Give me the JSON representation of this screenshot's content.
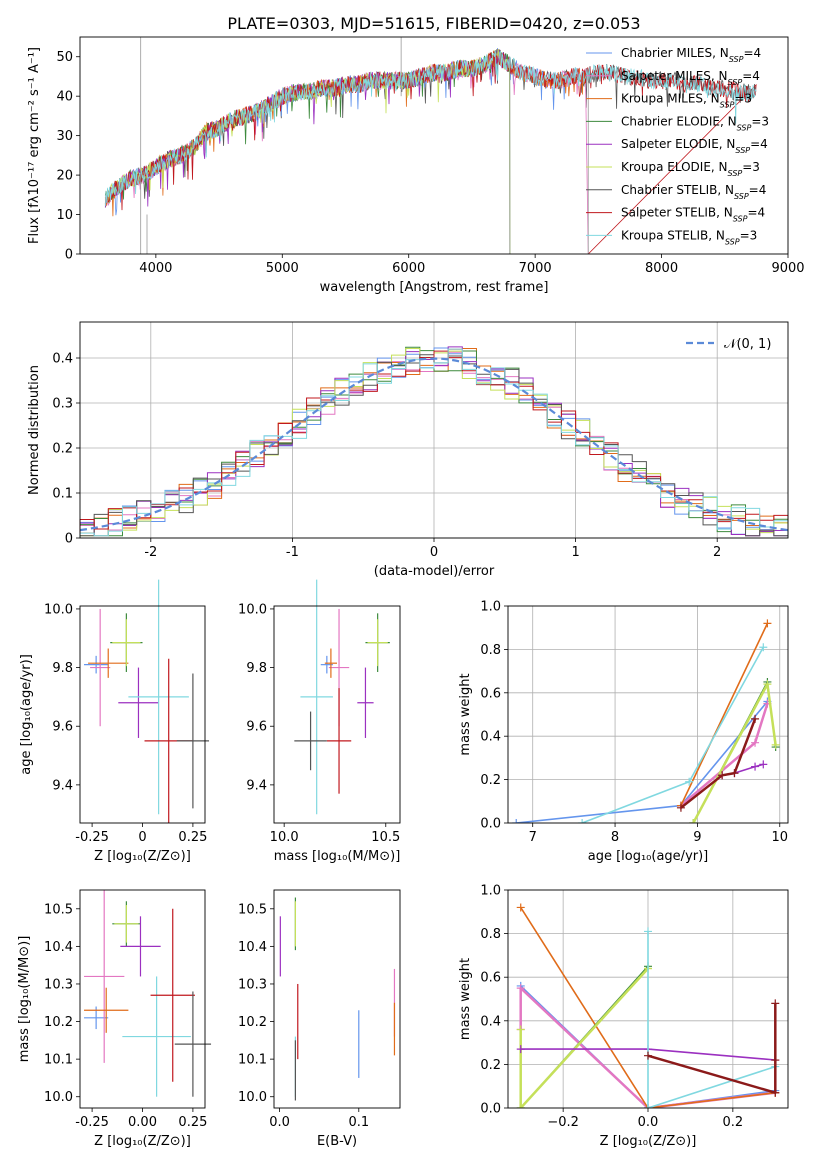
{
  "figure_title": "PLATE=0303, MJD=51615, FIBERID=0420, z=0.053",
  "chart_data": [
    {
      "id": "spectrum",
      "type": "line",
      "xlabel": "wavelength [Angstrom, rest frame]",
      "ylabel": "Flux [fλ10⁻¹⁷ erg cm⁻² s⁻¹ A⁻¹]",
      "xlim": [
        3400,
        9000
      ],
      "ylim": [
        0,
        55
      ],
      "xticks": [
        4000,
        5000,
        6000,
        7000,
        8000,
        9000
      ],
      "yticks": [
        0,
        10,
        20,
        30,
        40,
        50
      ],
      "grid": false,
      "legend_position": "top-right",
      "continuum_x": [
        3600,
        3700,
        3800,
        3900,
        4000,
        4100,
        4200,
        4300,
        4400,
        4500,
        4600,
        4700,
        4800,
        4900,
        5000,
        5100,
        5200,
        5300,
        5400,
        5500,
        5600,
        5700,
        5800,
        5900,
        6000,
        6100,
        6200,
        6300,
        6400,
        6500,
        6600,
        6700,
        6800,
        6900,
        7000,
        7100,
        7200,
        7300,
        7400,
        7500,
        7600,
        7700,
        7800,
        7900,
        8000,
        8100,
        8200,
        8300,
        8400,
        8500,
        8600,
        8700,
        8750
      ],
      "continuum_y": [
        14,
        17,
        19,
        20,
        22,
        24,
        25,
        27,
        31,
        32,
        34,
        35,
        36,
        38,
        40,
        41,
        41,
        42,
        42,
        43,
        43,
        44,
        44,
        44,
        44,
        45,
        46,
        46,
        47,
        47,
        48,
        50,
        48,
        46,
        45,
        44,
        44,
        45,
        45,
        46,
        46,
        45,
        45,
        44,
        44,
        44,
        43,
        43,
        42,
        42,
        41,
        41,
        41
      ],
      "series": [
        {
          "name": "Chabrier MILES, N_SSP=4",
          "label_main": "Chabrier MILES, N",
          "label_sub": "SSP",
          "label_tail": "=4",
          "color": "#6495ed",
          "xmax": 7400
        },
        {
          "name": "Salpeter MILES, N_SSP=4",
          "label_main": "Salpeter MILES, N",
          "label_sub": "SSP",
          "label_tail": "=4",
          "color": "#e377c2",
          "xmax": 7400
        },
        {
          "name": "Kroupa MILES, N_SSP=3",
          "label_main": "Kroupa MILES, N",
          "label_sub": "SSP",
          "label_tail": "=3",
          "color": "#e06c1a",
          "xmax": 7400
        },
        {
          "name": "Chabrier ELODIE, N_SSP=3",
          "label_main": "Chabrier ELODIE, N",
          "label_sub": "SSP",
          "label_tail": "=3",
          "color": "#3d8a3d",
          "xmax": 6800
        },
        {
          "name": "Salpeter ELODIE, N_SSP=4",
          "label_main": "Salpeter ELODIE, N",
          "label_sub": "SSP",
          "label_tail": "=4",
          "color": "#9b30c0",
          "xmax": 6800
        },
        {
          "name": "Kroupa ELODIE, N_SSP=3",
          "label_main": "Kroupa ELODIE, N",
          "label_sub": "SSP",
          "label_tail": "=3",
          "color": "#c5e05a",
          "xmax": 6800
        },
        {
          "name": "Chabrier STELIB, N_SSP=4",
          "label_main": "Chabrier STELIB, N",
          "label_sub": "SSP",
          "label_tail": "=4",
          "color": "#555555",
          "xmax": 8750
        },
        {
          "name": "Salpeter STELIB, N_SSP=4",
          "label_main": "Salpeter STELIB, N",
          "label_sub": "SSP",
          "label_tail": "=4",
          "color": "#c0181e",
          "xmax": 8750
        },
        {
          "name": "Kroupa STELIB, N_SSP=3",
          "label_main": "Kroupa STELIB, N",
          "label_sub": "SSP",
          "label_tail": "=3",
          "color": "#80d8e0",
          "xmax": 8750
        }
      ]
    },
    {
      "id": "residuals",
      "type": "histogram",
      "xlabel": "(data-model)/error",
      "ylabel": "Normed distribution",
      "xlim": [
        -2.5,
        2.5
      ],
      "ylim": [
        0,
        0.48
      ],
      "xticks": [
        -2,
        -1,
        0,
        1,
        2
      ],
      "yticks": [
        0.0,
        0.1,
        0.2,
        0.3,
        0.4
      ],
      "grid": true,
      "legend_position": "top-right",
      "legend_label": "𝒩(0, 1)",
      "reference_curve": {
        "name": "N(0,1)",
        "mean": 0,
        "sigma": 1,
        "color": "#5b8ad8"
      },
      "bins": [
        -2.5,
        -2.4,
        -2.3,
        -2.2,
        -2.1,
        -2.0,
        -1.9,
        -1.8,
        -1.7,
        -1.6,
        -1.5,
        -1.4,
        -1.3,
        -1.2,
        -1.1,
        -1.0,
        -0.9,
        -0.8,
        -0.7,
        -0.6,
        -0.5,
        -0.4,
        -0.3,
        -0.2,
        -0.1,
        0.0,
        0.1,
        0.2,
        0.3,
        0.4,
        0.5,
        0.6,
        0.7,
        0.8,
        0.9,
        1.0,
        1.1,
        1.2,
        1.3,
        1.4,
        1.5,
        1.6,
        1.7,
        1.8,
        1.9,
        2.0,
        2.1,
        2.2,
        2.3,
        2.4
      ],
      "hist_colors": [
        "#6495ed",
        "#e377c2",
        "#e06c1a",
        "#3d8a3d",
        "#9b30c0",
        "#c5e05a",
        "#555555",
        "#c0181e",
        "#80d8e0"
      ]
    },
    {
      "id": "age-vs-Z",
      "type": "scatter",
      "xlabel": "Z [log₁₀(Z/Z⊙)]",
      "ylabel": "age  [log₁₀(age/yr)]",
      "xlim": [
        -0.31,
        0.31
      ],
      "ylim": [
        9.27,
        10.01
      ],
      "xticks": [
        -0.25,
        0.0,
        0.25
      ],
      "ytick_labels": [
        "-0.25",
        "0.00",
        "0.25"
      ],
      "yticks": [
        9.4,
        9.6,
        9.8,
        10.0
      ],
      "ytick_text": [
        "9.4",
        "9.6",
        "9.8",
        "10.0"
      ],
      "grid": false,
      "points": [
        {
          "color": "#6495ed",
          "x": -0.23,
          "y": 9.81,
          "xerr": 0.06,
          "yerr": 0.03
        },
        {
          "color": "#e377c2",
          "x": -0.21,
          "y": 9.8,
          "xerr": 0.05,
          "yerr": 0.2
        },
        {
          "color": "#e06c1a",
          "x": -0.17,
          "y": 9.815,
          "xerr": 0.1,
          "yerr": 0.05
        },
        {
          "color": "#3d8a3d",
          "x": -0.08,
          "y": 9.885,
          "xerr": 0.08,
          "yerr": 0.1
        },
        {
          "color": "#c5e05a",
          "x": -0.08,
          "y": 9.885,
          "xerr": 0.07,
          "yerr": 0.08
        },
        {
          "color": "#9b30c0",
          "x": -0.02,
          "y": 9.68,
          "xerr": 0.1,
          "yerr": 0.12
        },
        {
          "color": "#80d8e0",
          "x": 0.08,
          "y": 9.7,
          "xerr": 0.15,
          "yerr": 0.4
        },
        {
          "color": "#c0181e",
          "x": 0.13,
          "y": 9.55,
          "xerr": 0.12,
          "yerr": 0.28
        },
        {
          "color": "#555555",
          "x": 0.25,
          "y": 9.55,
          "xerr": 0.08,
          "yerr": 0.23
        }
      ]
    },
    {
      "id": "age-vs-mass",
      "type": "scatter",
      "xlabel": "mass [log₁₀(M/M⊙)]",
      "xlim": [
        9.95,
        10.57
      ],
      "ylim": [
        9.27,
        10.01
      ],
      "xticks": [
        10.0,
        10.5
      ],
      "xtick_text": [
        "10.0",
        "10.5"
      ],
      "yticks": [
        9.4,
        9.6,
        9.8,
        10.0
      ],
      "ytick_text": [
        "9.4",
        "9.6",
        "9.8",
        "10.0"
      ],
      "grid": false,
      "points": [
        {
          "color": "#6495ed",
          "x": 10.21,
          "y": 9.81,
          "xerr": 0.03,
          "yerr": 0.03
        },
        {
          "color": "#e377c2",
          "x": 10.27,
          "y": 9.8,
          "xerr": 0.05,
          "yerr": 0.2
        },
        {
          "color": "#e06c1a",
          "x": 10.23,
          "y": 9.815,
          "xerr": 0.03,
          "yerr": 0.05
        },
        {
          "color": "#3d8a3d",
          "x": 10.46,
          "y": 9.885,
          "xerr": 0.06,
          "yerr": 0.1
        },
        {
          "color": "#c5e05a",
          "x": 10.46,
          "y": 9.885,
          "xerr": 0.05,
          "yerr": 0.08
        },
        {
          "color": "#9b30c0",
          "x": 10.4,
          "y": 9.68,
          "xerr": 0.04,
          "yerr": 0.12
        },
        {
          "color": "#80d8e0",
          "x": 10.16,
          "y": 9.7,
          "xerr": 0.08,
          "yerr": 0.4
        },
        {
          "color": "#c0181e",
          "x": 10.27,
          "y": 9.55,
          "xerr": 0.06,
          "yerr": 0.18
        },
        {
          "color": "#555555",
          "x": 10.13,
          "y": 9.55,
          "xerr": 0.08,
          "yerr": 0.1
        }
      ]
    },
    {
      "id": "weight-vs-age",
      "type": "line",
      "xlabel": "age  [log₁₀(age/yr)]",
      "ylabel": "mass weight",
      "xlim": [
        6.7,
        10.1
      ],
      "ylim": [
        0,
        1.0
      ],
      "xticks": [
        7,
        8,
        9,
        10
      ],
      "yticks": [
        0.0,
        0.2,
        0.4,
        0.6,
        0.8,
        1.0
      ],
      "ytick_text": [
        "0.0",
        "0.2",
        "0.4",
        "0.6",
        "0.8",
        "1.0"
      ],
      "grid": true,
      "series": [
        {
          "color": "#6495ed",
          "width": 1.6,
          "x": [
            6.8,
            8.8,
            9.85
          ],
          "y": [
            0.0,
            0.08,
            0.56
          ]
        },
        {
          "color": "#e377c2",
          "width": 2.5,
          "x": [
            8.8,
            9.7,
            9.85
          ],
          "y": [
            0.08,
            0.37,
            0.55
          ]
        },
        {
          "color": "#e06c1a",
          "width": 1.6,
          "x": [
            8.8,
            9.85
          ],
          "y": [
            0.08,
            0.92
          ]
        },
        {
          "color": "#3d8a3d",
          "width": 1.6,
          "x": [
            8.95,
            9.85,
            9.95
          ],
          "y": [
            0.0,
            0.65,
            0.35
          ]
        },
        {
          "color": "#c5e05a",
          "width": 2.5,
          "x": [
            8.95,
            9.85,
            9.95
          ],
          "y": [
            0.0,
            0.64,
            0.36
          ]
        },
        {
          "color": "#9b30c0",
          "width": 1.6,
          "x": [
            9.3,
            9.45,
            9.7,
            9.8
          ],
          "y": [
            0.22,
            0.23,
            0.26,
            0.27
          ]
        },
        {
          "color": "#80d8e0",
          "width": 1.6,
          "x": [
            7.6,
            8.9,
            9.8
          ],
          "y": [
            0.0,
            0.19,
            0.81
          ]
        },
        {
          "color": "#8b1a1a",
          "width": 2.5,
          "x": [
            8.8,
            9.3,
            9.45,
            9.7
          ],
          "y": [
            0.07,
            0.22,
            0.23,
            0.48
          ]
        }
      ]
    },
    {
      "id": "mass-vs-Z",
      "type": "scatter",
      "xlabel": "Z [log₁₀(Z/Z⊙)]",
      "ylabel": "mass [log₁₀(M/M⊙)]",
      "xlim": [
        -0.31,
        0.31
      ],
      "ylim": [
        9.97,
        10.55
      ],
      "xticks": [
        -0.25,
        0.0,
        0.25
      ],
      "xtick_text": [
        "-0.25",
        "0.00",
        "0.25"
      ],
      "yticks": [
        10.0,
        10.1,
        10.2,
        10.3,
        10.4,
        10.5
      ],
      "ytick_text": [
        "10.0",
        "10.1",
        "10.2",
        "10.3",
        "10.4",
        "10.5"
      ],
      "grid": false,
      "points": [
        {
          "color": "#6495ed",
          "x": -0.23,
          "y": 10.21,
          "xerr": 0.06,
          "yerr": 0.03
        },
        {
          "color": "#e377c2",
          "x": -0.19,
          "y": 10.32,
          "xerr": 0.1,
          "yerr": 0.23
        },
        {
          "color": "#e06c1a",
          "x": -0.18,
          "y": 10.23,
          "xerr": 0.11,
          "yerr": 0.06
        },
        {
          "color": "#3d8a3d",
          "x": -0.08,
          "y": 10.46,
          "xerr": 0.07,
          "yerr": 0.06
        },
        {
          "color": "#c5e05a",
          "x": -0.08,
          "y": 10.46,
          "xerr": 0.06,
          "yerr": 0.05
        },
        {
          "color": "#9b30c0",
          "x": -0.01,
          "y": 10.4,
          "xerr": 0.1,
          "yerr": 0.08
        },
        {
          "color": "#80d8e0",
          "x": 0.07,
          "y": 10.16,
          "xerr": 0.17,
          "yerr": 0.16
        },
        {
          "color": "#c0181e",
          "x": 0.15,
          "y": 10.27,
          "xerr": 0.11,
          "yerr": 0.23
        },
        {
          "color": "#555555",
          "x": 0.25,
          "y": 10.14,
          "xerr": 0.09,
          "yerr": 0.14
        }
      ]
    },
    {
      "id": "mass-vs-EBV",
      "type": "scatter",
      "xlabel": "E(B-V)",
      "xlim": [
        -0.007,
        0.152
      ],
      "ylim": [
        9.97,
        10.55
      ],
      "xticks": [
        0.0,
        0.1
      ],
      "xtick_text": [
        "0.0",
        "0.1"
      ],
      "yticks": [
        10.0,
        10.1,
        10.2,
        10.3,
        10.4,
        10.5
      ],
      "ytick_text": [
        "10.0",
        "10.1",
        "10.2",
        "10.3",
        "10.4",
        "10.5"
      ],
      "grid": false,
      "points": [
        {
          "color": "#6495ed",
          "x": 0.1,
          "y": 10.14,
          "xerr": 0,
          "yerr": 0.09
        },
        {
          "color": "#e377c2",
          "x": 0.145,
          "y": 10.25,
          "xerr": 0,
          "yerr": 0.09
        },
        {
          "color": "#e06c1a",
          "x": 0.145,
          "y": 10.18,
          "xerr": 0,
          "yerr": 0.07
        },
        {
          "color": "#3d8a3d",
          "x": 0.02,
          "y": 10.46,
          "xerr": 0,
          "yerr": 0.07
        },
        {
          "color": "#c5e05a",
          "x": 0.02,
          "y": 10.46,
          "xerr": 0,
          "yerr": 0.06
        },
        {
          "color": "#9b30c0",
          "x": 0.001,
          "y": 10.4,
          "xerr": 0,
          "yerr": 0.08
        },
        {
          "color": "#80d8e0",
          "x": 0.02,
          "y": 10.08,
          "xerr": 0,
          "yerr": 0.08
        },
        {
          "color": "#c0181e",
          "x": 0.023,
          "y": 10.2,
          "xerr": 0,
          "yerr": 0.1
        },
        {
          "color": "#555555",
          "x": 0.02,
          "y": 10.07,
          "xerr": 0,
          "yerr": 0.08
        }
      ]
    },
    {
      "id": "weight-vs-Z",
      "type": "line",
      "xlabel": "Z [log₁₀(Z/Z⊙)]",
      "ylabel": "mass weight",
      "xlim": [
        -0.33,
        0.33
      ],
      "ylim": [
        0,
        1.0
      ],
      "xticks": [
        -0.2,
        0.0,
        0.2
      ],
      "xtick_text": [
        "−0.2",
        "0.0",
        "0.2"
      ],
      "yticks": [
        0.0,
        0.2,
        0.4,
        0.6,
        0.8,
        1.0
      ],
      "ytick_text": [
        "0.0",
        "0.2",
        "0.4",
        "0.6",
        "0.8",
        "1.0"
      ],
      "grid": true,
      "series": [
        {
          "color": "#6495ed",
          "width": 1.6,
          "x": [
            -0.3,
            0.0,
            0.3
          ],
          "y": [
            0.56,
            0.0,
            0.08
          ]
        },
        {
          "color": "#e377c2",
          "width": 2.5,
          "x": [
            -0.3,
            -0.3,
            0.0,
            0.3
          ],
          "y": [
            0.36,
            0.55,
            0.0,
            0.07
          ]
        },
        {
          "color": "#e06c1a",
          "width": 1.6,
          "x": [
            -0.3,
            0.0,
            0.3
          ],
          "y": [
            0.92,
            0.0,
            0.07
          ]
        },
        {
          "color": "#3d8a3d",
          "width": 1.6,
          "x": [
            -0.3,
            0.0
          ],
          "y": [
            0.0,
            0.65
          ]
        },
        {
          "color": "#c5e05a",
          "width": 2.5,
          "x": [
            -0.3,
            -0.3,
            0.0,
            0.0
          ],
          "y": [
            0.36,
            0.0,
            0.64,
            0.64
          ]
        },
        {
          "color": "#9b30c0",
          "width": 1.6,
          "x": [
            -0.3,
            0.0,
            0.3
          ],
          "y": [
            0.27,
            0.27,
            0.22
          ]
        },
        {
          "color": "#80d8e0",
          "width": 1.6,
          "x": [
            0.0,
            0.0,
            0.3
          ],
          "y": [
            0.81,
            0.0,
            0.19
          ]
        },
        {
          "color": "#8b1a1a",
          "width": 2.5,
          "x": [
            0.0,
            0.3,
            0.3,
            0.3
          ],
          "y": [
            0.24,
            0.07,
            0.22,
            0.48
          ]
        }
      ]
    }
  ]
}
